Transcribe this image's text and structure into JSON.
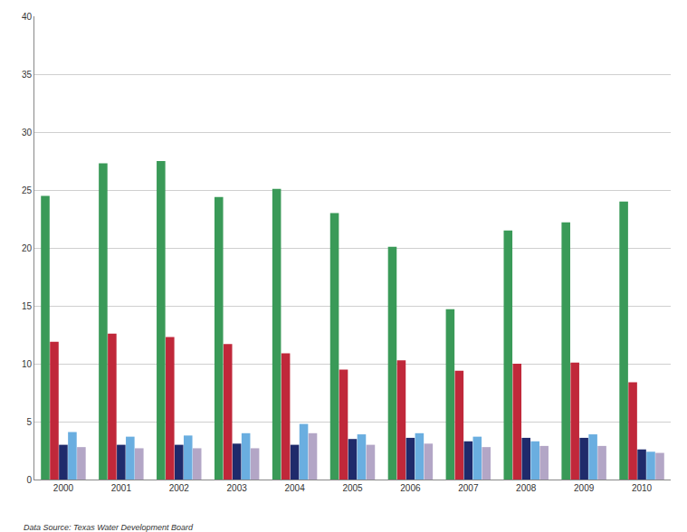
{
  "chart_data": {
    "type": "bar",
    "categories": [
      "2000",
      "2001",
      "2002",
      "2003",
      "2004",
      "2005",
      "2006",
      "2007",
      "2008",
      "2009",
      "2010"
    ],
    "series": [
      {
        "color": "#3a9a58",
        "values": [
          24.5,
          27.3,
          27.5,
          24.4,
          25.1,
          23.0,
          20.1,
          14.7,
          21.5,
          22.2,
          24.0
        ]
      },
      {
        "color": "#c0283a",
        "values": [
          11.9,
          12.6,
          12.3,
          11.7,
          10.9,
          9.5,
          10.3,
          9.4,
          10.0,
          10.1,
          8.4
        ]
      },
      {
        "color": "#1f2a6b",
        "values": [
          3.0,
          3.0,
          3.0,
          3.1,
          3.0,
          3.5,
          3.6,
          3.3,
          3.6,
          3.6,
          2.6
        ]
      },
      {
        "color": "#6aaee0",
        "values": [
          4.1,
          3.7,
          3.8,
          4.0,
          4.8,
          3.9,
          4.0,
          3.7,
          3.3,
          3.9,
          2.4
        ]
      },
      {
        "color": "#b3a6c6",
        "values": [
          2.8,
          2.7,
          2.7,
          2.7,
          4.0,
          3.0,
          3.1,
          2.8,
          2.9,
          2.9,
          2.3
        ]
      }
    ],
    "ylim": [
      0,
      40
    ],
    "yticks": [
      0,
      5,
      10,
      15,
      20,
      25,
      30,
      35,
      40
    ],
    "grid": true,
    "annotations": [
      "Data Source: Texas Water Development Board"
    ]
  }
}
